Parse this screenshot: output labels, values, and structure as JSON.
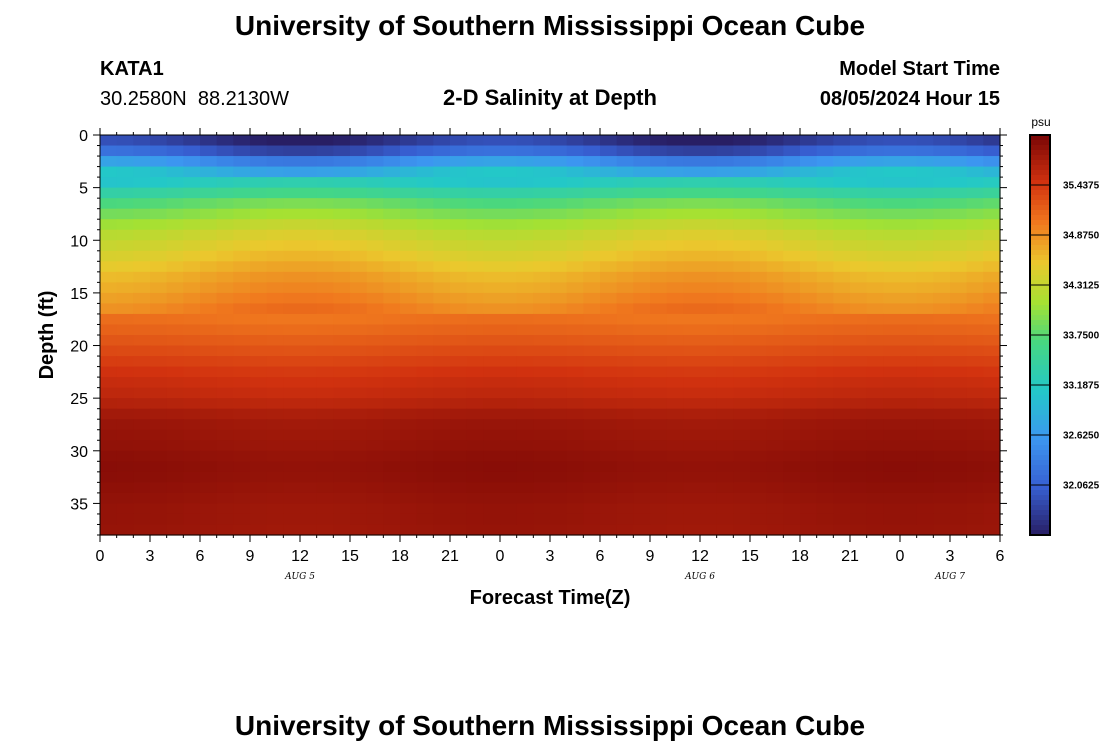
{
  "header": {
    "title": "University of Southern Mississippi Ocean Cube",
    "station_id": "KATA1",
    "coords": "30.2580N  88.2130W",
    "plot_title": "2-D Salinity at Depth",
    "model_start_label": "Model Start Time",
    "model_start_value": "08/05/2024 Hour 15",
    "footer_title": "University of Southern Mississippi Ocean Cube"
  },
  "chart_data": {
    "type": "heatmap",
    "title": "2-D Salinity at Depth",
    "xlabel": "Forecast Time(Z)",
    "ylabel": "Depth (ft)",
    "xlim": [
      0,
      54
    ],
    "ylim": [
      38,
      0
    ],
    "x_tick_values": [
      0,
      3,
      6,
      9,
      12,
      15,
      18,
      21,
      24,
      27,
      30,
      33,
      36,
      39,
      42,
      45,
      48,
      51,
      54
    ],
    "x_tick_labels": [
      "0",
      "3",
      "6",
      "9",
      "12",
      "15",
      "18",
      "21",
      "0",
      "3",
      "6",
      "9",
      "12",
      "15",
      "18",
      "21",
      "0",
      "3",
      "6"
    ],
    "y_tick_values": [
      0,
      5,
      10,
      15,
      20,
      25,
      30,
      35
    ],
    "y_tick_labels": [
      "0",
      "5",
      "10",
      "15",
      "20",
      "25",
      "30",
      "35"
    ],
    "date_labels": [
      {
        "text": "AUG 5",
        "x": 12
      },
      {
        "text": "AUG 6",
        "x": 36
      },
      {
        "text": "AUG 7",
        "x": 51
      }
    ],
    "colorbar": {
      "unit": "psu",
      "min": 31.5,
      "max": 36.0,
      "tick_values": [
        35.4375,
        34.875,
        34.3125,
        33.75,
        33.1875,
        32.625,
        32.0625
      ],
      "tick_labels": [
        "35.4375",
        "34.8750",
        "34.3125",
        "33.7500",
        "33.1875",
        "32.6250",
        "32.0625"
      ]
    },
    "depth_levels_ft": [
      0,
      1,
      2,
      3,
      4,
      5,
      6,
      7,
      8,
      9,
      10,
      11,
      12,
      13,
      14,
      15,
      16,
      17,
      18,
      19,
      20,
      21,
      22,
      23,
      24,
      25,
      26,
      27,
      28,
      29,
      30,
      31,
      32,
      33,
      34,
      35,
      36,
      37
    ],
    "profile_psu": [
      31.7,
      32.0,
      32.5,
      32.9,
      33.2,
      33.5,
      33.8,
      34.0,
      34.2,
      34.35,
      34.45,
      34.55,
      34.65,
      34.75,
      34.82,
      34.9,
      34.98,
      35.05,
      35.12,
      35.2,
      35.28,
      35.36,
      35.44,
      35.5,
      35.55,
      35.62,
      35.72,
      35.78,
      35.8,
      35.82,
      35.85,
      35.87,
      35.86,
      35.84,
      35.82,
      35.8,
      35.8,
      35.79
    ]
  }
}
